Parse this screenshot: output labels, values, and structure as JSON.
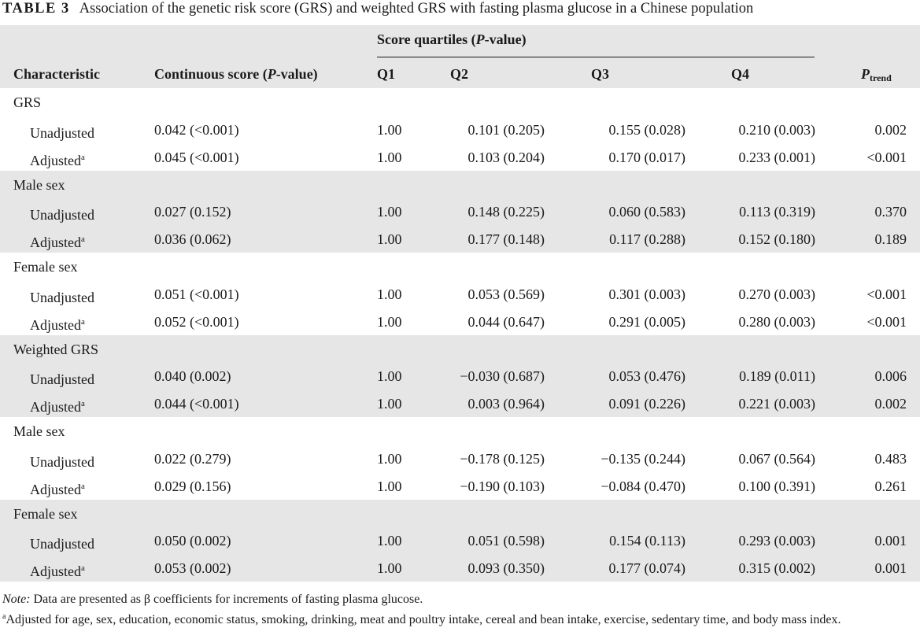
{
  "caption": {
    "label": "TABLE 3",
    "text": "Association of the genetic risk score (GRS) and weighted GRS with fasting plasma glucose in a Chinese population"
  },
  "header": {
    "characteristic": "Characteristic",
    "continuous_prefix": "Continuous score (",
    "continuous_p": "P",
    "continuous_suffix": "-value)",
    "quartiles_prefix": "Score quartiles (",
    "quartiles_p": "P",
    "quartiles_suffix": "-value)",
    "q1": "Q1",
    "q2": "Q2",
    "q3": "Q3",
    "q4": "Q4",
    "ptrend_p": "P",
    "ptrend_sub": "trend"
  },
  "groups": [
    {
      "label": "GRS",
      "rows": [
        {
          "label": "Unadjusted",
          "sup": "",
          "cont": "0.042 (<0.001)",
          "q1": "1.00",
          "q2": "0.101 (0.205)",
          "q3": "0.155 (0.028)",
          "q4": "0.210 (0.003)",
          "ptrend": "0.002"
        },
        {
          "label": "Adjusted",
          "sup": "a",
          "cont": "0.045 (<0.001)",
          "q1": "1.00",
          "q2": "0.103 (0.204)",
          "q3": "0.170 (0.017)",
          "q4": "0.233 (0.001)",
          "ptrend": "<0.001"
        }
      ]
    },
    {
      "label": "Male sex",
      "rows": [
        {
          "label": "Unadjusted",
          "sup": "",
          "cont": "0.027 (0.152)",
          "q1": "1.00",
          "q2": "0.148 (0.225)",
          "q3": "0.060 (0.583)",
          "q4": "0.113 (0.319)",
          "ptrend": "0.370"
        },
        {
          "label": "Adjusted",
          "sup": "a",
          "cont": "0.036 (0.062)",
          "q1": "1.00",
          "q2": "0.177 (0.148)",
          "q3": "0.117 (0.288)",
          "q4": "0.152 (0.180)",
          "ptrend": "0.189"
        }
      ]
    },
    {
      "label": "Female sex",
      "rows": [
        {
          "label": "Unadjusted",
          "sup": "",
          "cont": "0.051 (<0.001)",
          "q1": "1.00",
          "q2": "0.053 (0.569)",
          "q3": "0.301 (0.003)",
          "q4": "0.270 (0.003)",
          "ptrend": "<0.001"
        },
        {
          "label": "Adjusted",
          "sup": "a",
          "cont": "0.052 (<0.001)",
          "q1": "1.00",
          "q2": "0.044 (0.647)",
          "q3": "0.291 (0.005)",
          "q4": "0.280 (0.003)",
          "ptrend": "<0.001"
        }
      ]
    },
    {
      "label": "Weighted GRS",
      "rows": [
        {
          "label": "Unadjusted",
          "sup": "",
          "cont": "0.040 (0.002)",
          "q1": "1.00",
          "q2": "−0.030 (0.687)",
          "q3": "0.053 (0.476)",
          "q4": "0.189 (0.011)",
          "ptrend": "0.006"
        },
        {
          "label": "Adjusted",
          "sup": "a",
          "cont": "0.044 (<0.001)",
          "q1": "1.00",
          "q2": "0.003 (0.964)",
          "q3": "0.091 (0.226)",
          "q4": "0.221 (0.003)",
          "ptrend": "0.002"
        }
      ]
    },
    {
      "label": "Male sex",
      "rows": [
        {
          "label": "Unadjusted",
          "sup": "",
          "cont": "0.022 (0.279)",
          "q1": "1.00",
          "q2": "−0.178 (0.125)",
          "q3": "−0.135 (0.244)",
          "q4": "0.067 (0.564)",
          "ptrend": "0.483"
        },
        {
          "label": "Adjusted",
          "sup": "a",
          "cont": "0.029 (0.156)",
          "q1": "1.00",
          "q2": "−0.190 (0.103)",
          "q3": "−0.084 (0.470)",
          "q4": "0.100 (0.391)",
          "ptrend": "0.261"
        }
      ]
    },
    {
      "label": "Female sex",
      "rows": [
        {
          "label": "Unadjusted",
          "sup": "",
          "cont": "0.050 (0.002)",
          "q1": "1.00",
          "q2": "0.051 (0.598)",
          "q3": "0.154 (0.113)",
          "q4": "0.293 (0.003)",
          "ptrend": "0.001"
        },
        {
          "label": "Adjusted",
          "sup": "a",
          "cont": "0.053 (0.002)",
          "q1": "1.00",
          "q2": "0.093 (0.350)",
          "q3": "0.177 (0.074)",
          "q4": "0.315 (0.002)",
          "ptrend": "0.001"
        }
      ]
    }
  ],
  "notes": {
    "note_label": "Note:",
    "note_text": " Data are presented as β coefficients for increments of fasting plasma glucose.",
    "footnote_sup": "a",
    "footnote_text": "Adjusted for age, sex, education, economic status, smoking, drinking, meat and poultry intake, cereal and bean intake, exercise, sedentary time, and body mass index."
  }
}
